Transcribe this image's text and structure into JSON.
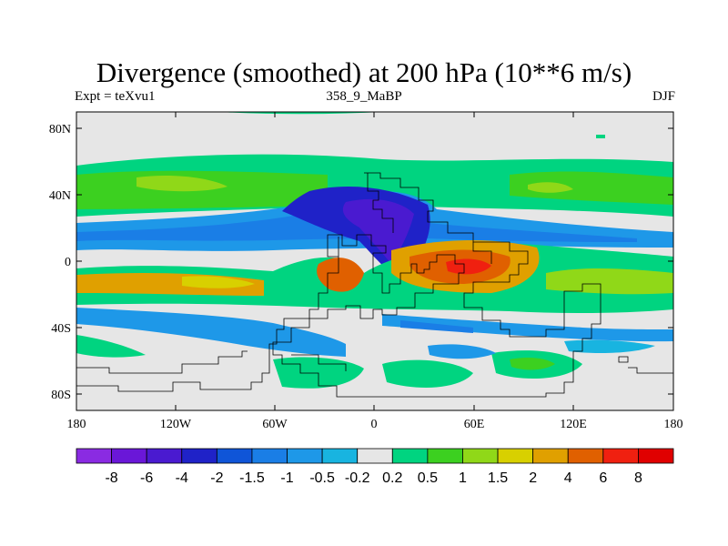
{
  "title": "Divergence (smoothed) at 200 hPa (10**6 m/s)",
  "subtitle_left": "Expt = teXvu1",
  "subtitle_center": "358_9_MaBP",
  "subtitle_right": "DJF",
  "x_ticks": [
    "180",
    "120W",
    "60W",
    "0",
    "60E",
    "120E",
    "180"
  ],
  "y_ticks": [
    "80N",
    "40N",
    "0",
    "40S",
    "80S"
  ],
  "colorbar": {
    "colors": [
      "#8a2be2",
      "#6a17d8",
      "#4a1ad0",
      "#1f22c8",
      "#0f55d8",
      "#1a7ee6",
      "#1e98e8",
      "#18b4e0",
      "#e6e6e6",
      "#00d480",
      "#3cd020",
      "#90d818",
      "#d8d000",
      "#e0a000",
      "#e06000",
      "#f02010",
      "#e00000"
    ],
    "labels": [
      "-8",
      "-6",
      "-4",
      "-2",
      "-1.5",
      "-1",
      "-0.5",
      "-0.2",
      "0.2",
      "0.5",
      "1",
      "1.5",
      "2",
      "4",
      "6",
      "8"
    ]
  }
}
